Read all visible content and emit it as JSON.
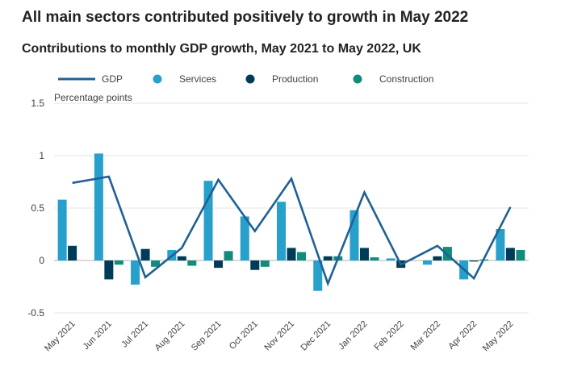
{
  "chart_data": {
    "type": "bar",
    "title": "All main sectors contributed positively to growth in May 2022",
    "subtitle": "Contributions to monthly GDP growth, May 2021 to May 2022, UK",
    "ylabel": "Percentage points",
    "ylim": [
      -0.5,
      1.5
    ],
    "yticks": [
      "1.5",
      "1",
      "0.5",
      "0",
      "-0.5"
    ],
    "ytick_values": [
      1.5,
      1,
      0.5,
      0,
      -0.5
    ],
    "categories": [
      "May 2021",
      "Jun 2021",
      "Jul 2021",
      "Aug 2021",
      "Sep 2021",
      "Oct 2021",
      "Nov 2021",
      "Dec 2021",
      "Jan 2022",
      "Feb 2022",
      "Mar 2022",
      "Apr 2022",
      "May 2022"
    ],
    "series": [
      {
        "name": "Services",
        "kind": "bar",
        "color": "#27a0cc",
        "values": [
          0.58,
          1.02,
          -0.23,
          0.1,
          0.76,
          0.42,
          0.56,
          -0.29,
          0.48,
          0.02,
          -0.04,
          -0.18,
          0.3
        ]
      },
      {
        "name": "Production",
        "kind": "bar",
        "color": "#003c57",
        "values": [
          0.14,
          -0.18,
          0.11,
          0.04,
          -0.07,
          -0.09,
          0.12,
          0.04,
          0.12,
          -0.07,
          0.04,
          -0.01,
          0.12
        ]
      },
      {
        "name": "Construction",
        "kind": "bar",
        "color": "#118c7b",
        "values": [
          0.0,
          -0.04,
          -0.06,
          -0.05,
          0.09,
          -0.06,
          0.08,
          0.04,
          0.03,
          0.0,
          0.13,
          0.01,
          0.1
        ]
      },
      {
        "name": "GDP",
        "kind": "line",
        "color": "#206095",
        "values": [
          0.74,
          0.8,
          -0.16,
          0.12,
          0.77,
          0.28,
          0.78,
          -0.22,
          0.65,
          -0.04,
          0.14,
          -0.17,
          0.51
        ]
      }
    ],
    "legend": [
      "GDP",
      "Services",
      "Production",
      "Construction"
    ],
    "legend_position": "top",
    "grid": true
  }
}
